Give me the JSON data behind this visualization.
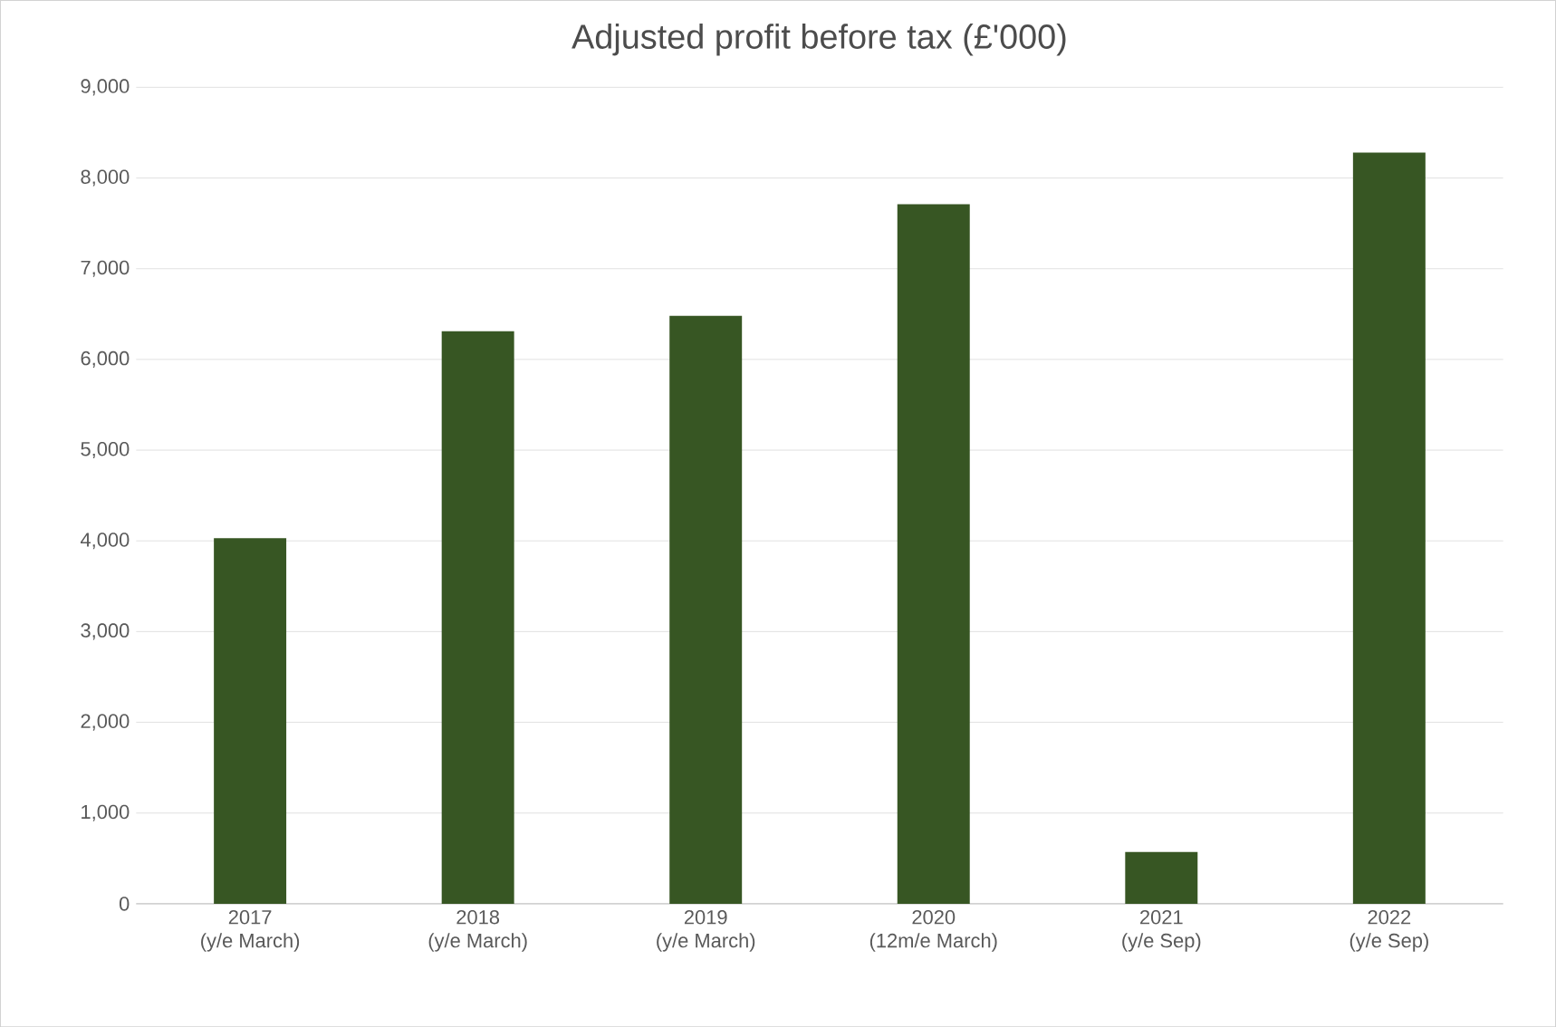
{
  "chart_data": {
    "type": "bar",
    "title": "Adjusted profit before tax (£'000)",
    "categories": [
      "2017\n(y/e March)",
      "2018\n(y/e March)",
      "2019\n(y/e March)",
      "2020\n(12m/e March)",
      "2021\n(y/e Sep)",
      "2022\n(y/e Sep)"
    ],
    "values": [
      4030,
      6310,
      6480,
      7710,
      570,
      8280
    ],
    "color": "#375623",
    "ylim": [
      0,
      9000
    ],
    "yticks": [
      0,
      {
        "value": 1000,
        "label": "1,000"
      },
      {
        "value": 2000,
        "label": "2,000"
      },
      {
        "value": 3000,
        "label": "3,000"
      },
      {
        "value": 4000,
        "label": "4,000"
      },
      {
        "value": 5000,
        "label": "5,000"
      },
      {
        "value": 6000,
        "label": "6,000"
      },
      {
        "value": 7000,
        "label": "7,000"
      },
      {
        "value": 8000,
        "label": "8,000"
      },
      {
        "value": 9000,
        "label": "9,000"
      }
    ],
    "grid": "y"
  }
}
